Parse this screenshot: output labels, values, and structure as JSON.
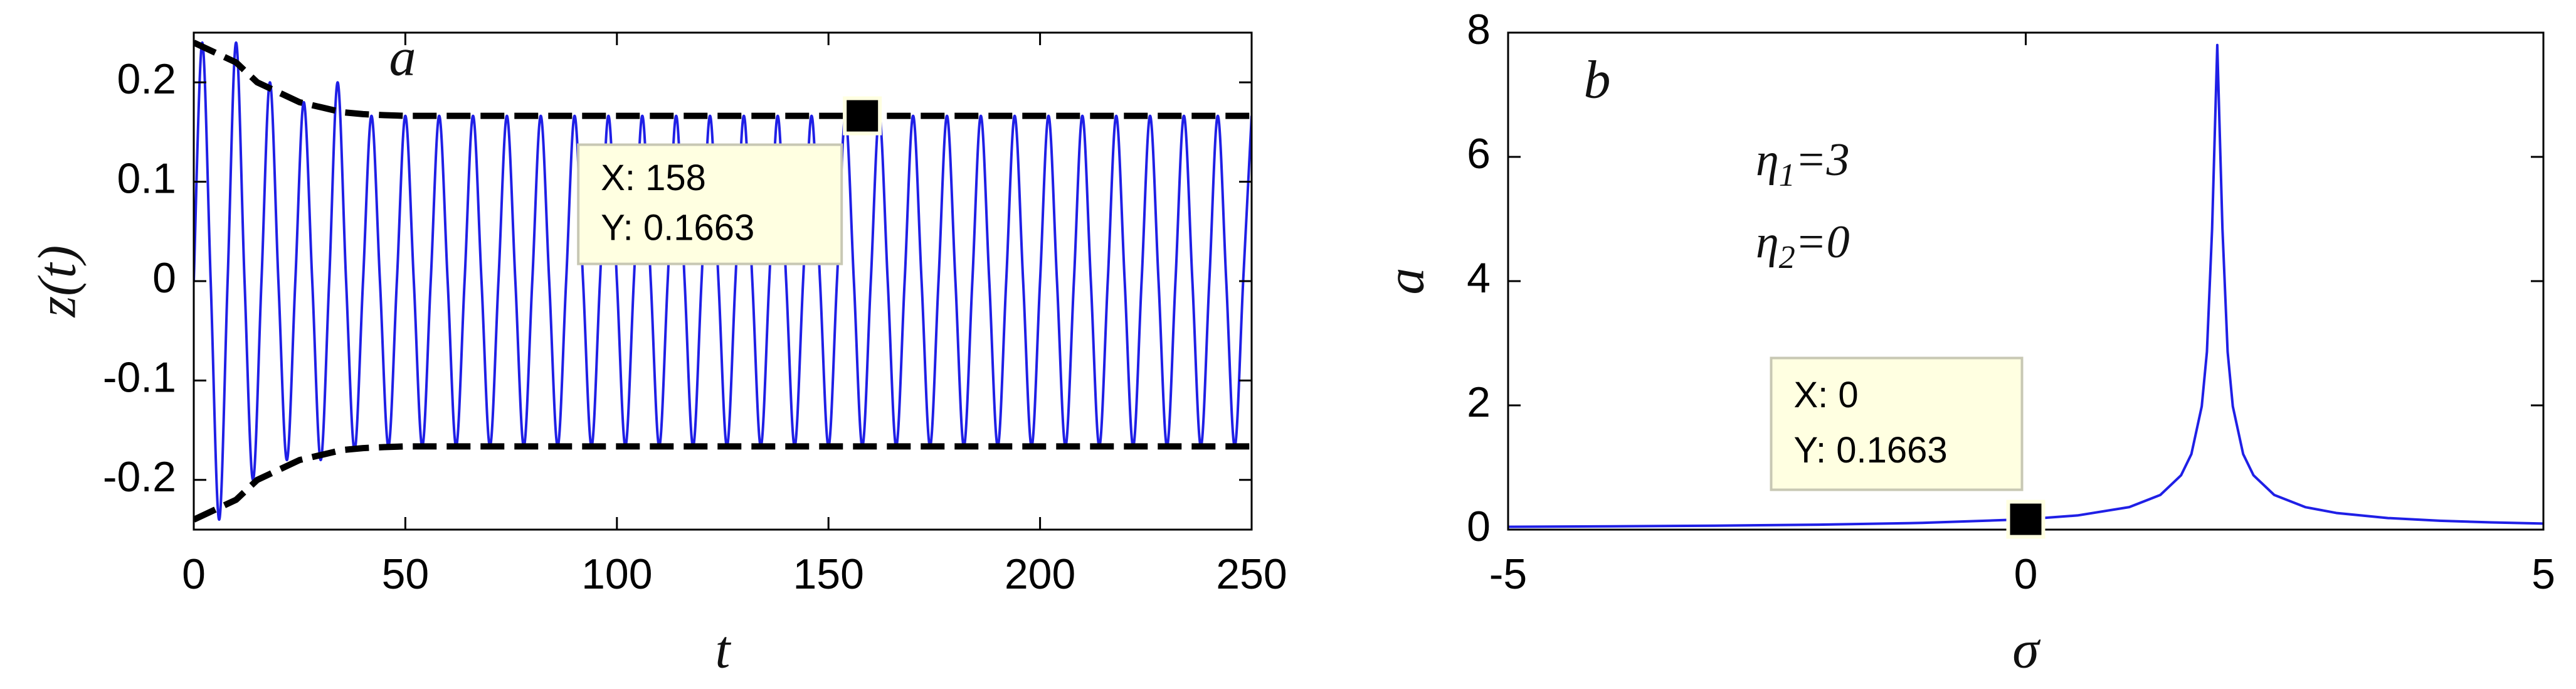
{
  "chart_data": [
    {
      "type": "line",
      "panel_label": "a",
      "xlabel": "t",
      "ylabel": "z(t)",
      "xlim": [
        0,
        250
      ],
      "ylim": [
        -0.25,
        0.25
      ],
      "xticks": [
        0,
        50,
        100,
        150,
        200,
        250
      ],
      "yticks": [
        -0.2,
        -0.1,
        0,
        0.1,
        0.2
      ],
      "series": [
        {
          "color": "#1f1fe6",
          "smooth": true,
          "x": [
            0,
            2,
            4,
            6,
            8,
            10,
            12,
            14,
            16,
            18,
            20,
            22,
            24,
            26,
            28,
            30,
            32,
            34,
            36,
            38,
            40,
            42,
            44,
            46,
            48,
            50,
            52,
            54,
            56,
            58,
            60,
            62,
            64,
            66,
            68,
            70,
            72,
            74,
            76,
            78,
            80,
            82,
            84,
            86,
            88,
            90,
            92,
            94,
            96,
            98,
            100,
            102,
            104,
            106,
            108,
            110,
            112,
            114,
            116,
            118,
            120,
            122,
            124,
            126,
            128,
            130,
            132,
            134,
            136,
            138,
            140,
            142,
            144,
            146,
            148,
            150,
            152,
            154,
            156,
            158,
            160,
            162,
            164,
            166,
            168,
            170,
            172,
            174,
            176,
            178,
            180,
            182,
            184,
            186,
            188,
            190,
            192,
            194,
            196,
            198,
            200,
            202,
            204,
            206,
            208,
            210,
            212,
            214,
            216,
            218,
            220,
            222,
            224,
            226,
            228,
            230,
            232,
            234,
            236,
            238,
            240,
            242,
            244,
            246,
            248,
            250
          ],
          "values": [
            0,
            0.24,
            0,
            -0.24,
            0,
            0.24,
            0,
            -0.2,
            0,
            0.2,
            0,
            -0.18,
            0,
            0.18,
            0,
            -0.18,
            0,
            0.2,
            0,
            -0.17,
            0,
            0.1663,
            0,
            -0.1663,
            0,
            0.1663,
            0,
            -0.1663,
            0,
            0.1663,
            0,
            -0.1663,
            0,
            0.1663,
            0,
            -0.1663,
            0,
            0.1663,
            0,
            -0.1663,
            0,
            0.1663,
            0,
            -0.1663,
            0,
            0.1663,
            0,
            -0.1663,
            0,
            0.1663,
            0,
            -0.1663,
            0,
            0.1663,
            0,
            -0.1663,
            0,
            0.1663,
            0,
            -0.1663,
            0,
            0.1663,
            0,
            -0.1663,
            0,
            0.1663,
            0,
            -0.1663,
            0,
            0.1663,
            0,
            -0.1663,
            0,
            0.1663,
            0,
            -0.1663,
            0,
            0.1663,
            0,
            -0.1663,
            0,
            0.1663,
            0,
            -0.1663,
            0,
            0.1663,
            0,
            -0.1663,
            0,
            0.1663,
            0,
            -0.1663,
            0,
            0.1663,
            0,
            -0.1663,
            0,
            0.1663,
            0,
            -0.1663,
            0,
            0.1663,
            0,
            -0.1663,
            0,
            0.1663,
            0,
            -0.1663,
            0,
            0.1663,
            0,
            -0.1663,
            0,
            0.1663,
            0,
            -0.1663,
            0,
            0.1663,
            0,
            -0.1663,
            0,
            0.1663,
            0,
            -0.1663,
            0,
            0.1663
          ]
        },
        {
          "color": "#000000",
          "line_style": "dashed",
          "x": [
            0,
            5,
            10,
            15,
            20,
            25,
            30,
            35,
            40,
            45,
            50,
            55,
            60,
            65,
            70,
            75,
            80,
            85,
            90,
            95,
            100,
            105,
            110,
            115,
            120,
            125,
            130,
            135,
            140,
            145,
            150,
            155,
            160,
            165,
            170,
            175,
            180,
            185,
            190,
            195,
            200,
            205,
            210,
            215,
            220,
            225,
            230,
            235,
            240,
            245,
            250
          ],
          "values": [
            0.24,
            0.23,
            0.22,
            0.2,
            0.19,
            0.18,
            0.175,
            0.17,
            0.168,
            0.167,
            0.1663,
            0.1663,
            0.1663,
            0.1663,
            0.1663,
            0.1663,
            0.1663,
            0.1663,
            0.1663,
            0.1663,
            0.1663,
            0.1663,
            0.1663,
            0.1663,
            0.1663,
            0.1663,
            0.1663,
            0.1663,
            0.1663,
            0.1663,
            0.1663,
            0.1663,
            0.1663,
            0.1663,
            0.1663,
            0.1663,
            0.1663,
            0.1663,
            0.1663,
            0.1663,
            0.1663,
            0.1663,
            0.1663,
            0.1663,
            0.1663,
            0.1663,
            0.1663,
            0.1663,
            0.1663,
            0.1663,
            0.1663
          ]
        },
        {
          "color": "#000000",
          "line_style": "dashed",
          "x": [
            0,
            5,
            10,
            15,
            20,
            25,
            30,
            35,
            40,
            45,
            50,
            55,
            60,
            65,
            70,
            75,
            80,
            85,
            90,
            95,
            100,
            105,
            110,
            115,
            120,
            125,
            130,
            135,
            140,
            145,
            150,
            155,
            160,
            165,
            170,
            175,
            180,
            185,
            190,
            195,
            200,
            205,
            210,
            215,
            220,
            225,
            230,
            235,
            240,
            245,
            250
          ],
          "values": [
            -0.24,
            -0.23,
            -0.22,
            -0.2,
            -0.19,
            -0.18,
            -0.175,
            -0.17,
            -0.168,
            -0.167,
            -0.1663,
            -0.1663,
            -0.1663,
            -0.1663,
            -0.1663,
            -0.1663,
            -0.1663,
            -0.1663,
            -0.1663,
            -0.1663,
            -0.1663,
            -0.1663,
            -0.1663,
            -0.1663,
            -0.1663,
            -0.1663,
            -0.1663,
            -0.1663,
            -0.1663,
            -0.1663,
            -0.1663,
            -0.1663,
            -0.1663,
            -0.1663,
            -0.1663,
            -0.1663,
            -0.1663,
            -0.1663,
            -0.1663,
            -0.1663,
            -0.1663,
            -0.1663,
            -0.1663,
            -0.1663,
            -0.1663,
            -0.1663,
            -0.1663,
            -0.1663,
            -0.1663,
            -0.1663,
            -0.1663
          ]
        }
      ],
      "datatips": [
        {
          "x": 158,
          "y": 0.1663,
          "lines": [
            "X: 158",
            "Y: 0.1663"
          ]
        }
      ]
    },
    {
      "type": "line",
      "panel_label": "b",
      "xlabel": "σ",
      "ylabel": "a",
      "xlim": [
        -5,
        5
      ],
      "ylim": [
        0,
        8
      ],
      "xticks": [
        -5,
        0,
        5
      ],
      "yticks": [
        0,
        2,
        4,
        6,
        8
      ],
      "params": [
        {
          "symbol": "η",
          "subscript": "1",
          "value": "=3"
        },
        {
          "symbol": "η",
          "subscript": "2",
          "value": "=0"
        }
      ],
      "series": [
        {
          "color": "#1f1fe6",
          "x": [
            -5,
            -4,
            -3,
            -2,
            -1,
            0,
            0.5,
            1,
            1.3,
            1.5,
            1.6,
            1.7,
            1.75,
            1.8,
            1.85,
            1.9,
            1.95,
            2,
            2.1,
            2.2,
            2.4,
            2.7,
            3,
            3.5,
            4,
            4.5,
            5
          ],
          "values": [
            0.0449,
            0.0526,
            0.0634,
            0.0799,
            0.108,
            0.1663,
            0.228,
            0.362,
            0.558,
            0.874,
            1.216,
            1.984,
            2.863,
            4.84,
            7.8,
            4.84,
            2.863,
            1.984,
            1.216,
            0.874,
            0.558,
            0.362,
            0.268,
            0.186,
            0.143,
            0.116,
            0.0977
          ]
        }
      ],
      "datatips": [
        {
          "x": 0,
          "y": 0.1663,
          "lines": [
            "X: 0",
            "Y: 0.1663"
          ]
        }
      ]
    }
  ]
}
